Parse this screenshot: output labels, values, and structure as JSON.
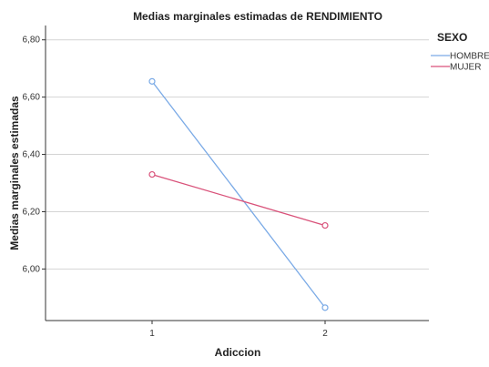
{
  "chart_data": {
    "type": "line",
    "title": "Medias marginales estimadas de RENDIMIENTO",
    "xlabel": "Adiccion",
    "ylabel": "Medias marginales estimadas",
    "categories": [
      "1",
      "2"
    ],
    "ylim": [
      5.82,
      6.85
    ],
    "yticks": [
      "6,80",
      "6,60",
      "6,40",
      "6,20",
      "6,00"
    ],
    "ytick_values": [
      6.8,
      6.6,
      6.4,
      6.2,
      6.0
    ],
    "grid": true,
    "legend_title": "SEXO",
    "legend_position": "top-right",
    "series": [
      {
        "name": "HOMBRE",
        "color": "#7aaae6",
        "values": [
          6.655,
          5.865
        ]
      },
      {
        "name": "MUJER",
        "color": "#d9527a",
        "values": [
          6.33,
          6.152
        ]
      }
    ]
  }
}
